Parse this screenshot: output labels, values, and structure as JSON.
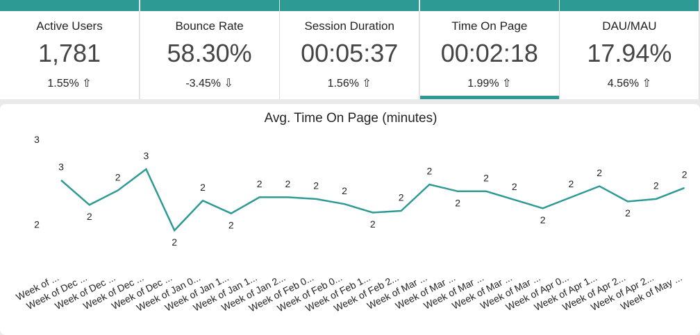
{
  "cards": [
    {
      "label": "Active Users",
      "value": "1,781",
      "change": "1.55% ⇧"
    },
    {
      "label": "Bounce Rate",
      "value": "58.30%",
      "change": "-3.45% ⇩"
    },
    {
      "label": "Session Duration",
      "value": "00:05:37",
      "change": "1.56% ⇧"
    },
    {
      "label": "Time On Page",
      "value": "00:02:18",
      "change": "1.99% ⇧"
    },
    {
      "label": "DAU/MAU",
      "value": "17.94%",
      "change": "4.56% ⇧"
    }
  ],
  "chart_data": {
    "type": "line",
    "title": "Avg. Time On Page (minutes)",
    "categories": [
      "Week of ...",
      "Week of Dec ...",
      "Week of Dec ...",
      "Week of Dec ...",
      "Week of Dec ...",
      "Week of Jan 0...",
      "Week of Jan 1...",
      "Week of Jan 1...",
      "Week of Jan 2...",
      "Week of Feb 0...",
      "Week of Feb 0...",
      "Week of Feb 1...",
      "Week of Feb 2...",
      "Week of Mar ...",
      "Week of Mar ...",
      "Week of Mar ...",
      "Week of Mar ...",
      "Week of Mar ...",
      "Week of Apr 0...",
      "Week of Apr 1...",
      "Week of Apr 2...",
      "Week of Apr 2...",
      "Week of May ..."
    ],
    "series": [
      {
        "name": "Avg. Time On Page",
        "color": "#2e9a94",
        "values": [
          2.53,
          2.24,
          2.41,
          2.66,
          1.94,
          2.29,
          2.14,
          2.33,
          2.33,
          2.31,
          2.25,
          2.15,
          2.17,
          2.48,
          2.4,
          2.4,
          2.3,
          2.2,
          2.33,
          2.46,
          2.28,
          2.31,
          2.44
        ],
        "value_labels": [
          "3",
          "2",
          "2",
          "3",
          "2",
          "2",
          "2",
          "2",
          "2",
          "2",
          "2",
          "2",
          "2",
          "2",
          "2",
          "2",
          "2",
          "2",
          "2",
          "2",
          "2",
          "2",
          "2"
        ]
      }
    ],
    "ylim": [
      1.55,
      3.1
    ],
    "yticks": [
      2,
      3
    ]
  }
}
